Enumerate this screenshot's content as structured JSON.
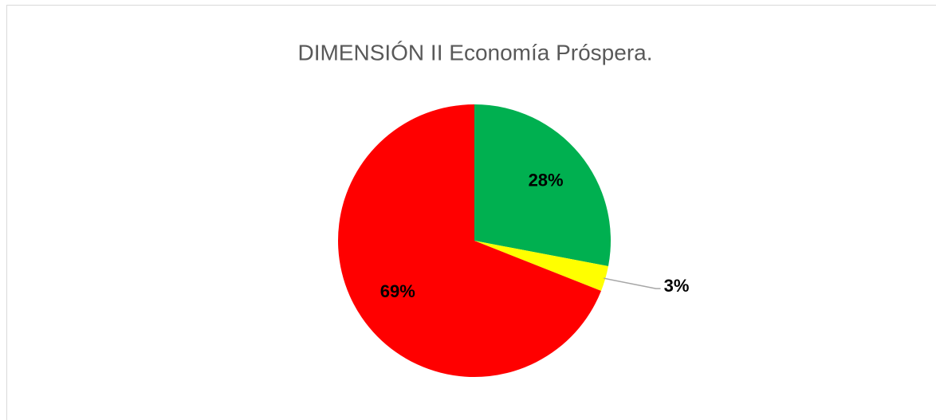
{
  "chart_data": {
    "type": "pie",
    "title": "DIMENSIÓN II  Economía Próspera.",
    "values": [
      28,
      3,
      69
    ],
    "value_labels": [
      "28%",
      "3%",
      "69%"
    ],
    "colors": [
      "#00b050",
      "#ffff00",
      "#ff0000"
    ]
  }
}
